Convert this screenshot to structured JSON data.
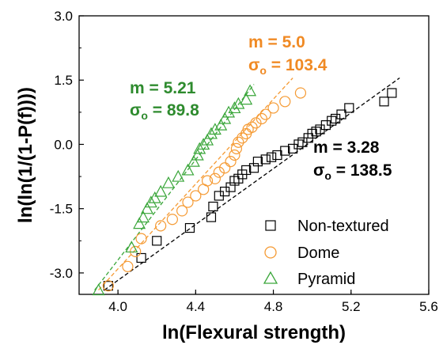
{
  "chart_data": {
    "type": "scatter",
    "xlabel": "ln(Flexural strength)",
    "ylabel": "ln(ln(1/(1-P(f))))",
    "xlim": [
      3.8,
      5.6
    ],
    "ylim": [
      -3.5,
      3.0
    ],
    "xticks": [
      "4.0",
      "4.4",
      "4.8",
      "5.2",
      "5.6"
    ],
    "yticks": [
      "-3.0",
      "-1.5",
      "0.0",
      "1.5",
      "3.0"
    ],
    "xtick_values": [
      4.0,
      4.4,
      4.8,
      5.2,
      5.6
    ],
    "ytick_values": [
      -3.0,
      -1.5,
      0.0,
      1.5,
      3.0
    ],
    "legend_position": "bottom-right",
    "series": [
      {
        "name": "Non-textured",
        "marker": "square",
        "color": "#000000",
        "fit": {
          "x": [
            3.93,
            5.45
          ],
          "y": [
            -3.4,
            1.55
          ]
        },
        "points": [
          [
            3.95,
            -3.3
          ],
          [
            4.12,
            -2.65
          ],
          [
            4.2,
            -2.25
          ],
          [
            4.37,
            -1.95
          ],
          [
            4.48,
            -1.7
          ],
          [
            4.49,
            -1.45
          ],
          [
            4.52,
            -1.2
          ],
          [
            4.55,
            -1.1
          ],
          [
            4.58,
            -1.0
          ],
          [
            4.6,
            -0.85
          ],
          [
            4.62,
            -0.8
          ],
          [
            4.64,
            -0.7
          ],
          [
            4.66,
            -0.6
          ],
          [
            4.7,
            -0.55
          ],
          [
            4.72,
            -0.4
          ],
          [
            4.76,
            -0.35
          ],
          [
            4.79,
            -0.3
          ],
          [
            4.82,
            -0.25
          ],
          [
            4.86,
            -0.15
          ],
          [
            4.9,
            -0.1
          ],
          [
            4.93,
            0.0
          ],
          [
            4.95,
            0.05
          ],
          [
            4.98,
            0.15
          ],
          [
            5.0,
            0.25
          ],
          [
            5.02,
            0.3
          ],
          [
            5.04,
            0.35
          ],
          [
            5.07,
            0.45
          ],
          [
            5.1,
            0.55
          ],
          [
            5.12,
            0.6
          ],
          [
            5.15,
            0.7
          ],
          [
            5.19,
            0.85
          ],
          [
            5.37,
            1.0
          ],
          [
            5.41,
            1.2
          ]
        ]
      },
      {
        "name": "Dome",
        "marker": "circle",
        "color": "#f59a33",
        "fit": {
          "x": [
            3.9,
            4.9
          ],
          "y": [
            -3.4,
            1.55
          ]
        },
        "points": [
          [
            3.95,
            -3.3
          ],
          [
            4.05,
            -2.85
          ],
          [
            4.09,
            -2.5
          ],
          [
            4.12,
            -2.2
          ],
          [
            4.22,
            -1.9
          ],
          [
            4.28,
            -1.75
          ],
          [
            4.33,
            -1.55
          ],
          [
            4.36,
            -1.35
          ],
          [
            4.4,
            -1.2
          ],
          [
            4.44,
            -1.05
          ],
          [
            4.46,
            -0.85
          ],
          [
            4.5,
            -0.8
          ],
          [
            4.52,
            -0.65
          ],
          [
            4.55,
            -0.55
          ],
          [
            4.58,
            -0.4
          ],
          [
            4.6,
            -0.25
          ],
          [
            4.61,
            -0.1
          ],
          [
            4.62,
            0.05
          ],
          [
            4.64,
            0.15
          ],
          [
            4.66,
            0.25
          ],
          [
            4.67,
            0.35
          ],
          [
            4.69,
            0.4
          ],
          [
            4.71,
            0.5
          ],
          [
            4.74,
            0.6
          ],
          [
            4.76,
            0.7
          ],
          [
            4.8,
            0.85
          ],
          [
            4.86,
            1.0
          ],
          [
            4.94,
            1.2
          ]
        ]
      },
      {
        "name": "Pyramid",
        "marker": "triangle",
        "color": "#3aa63a",
        "fit": {
          "x": [
            3.88,
            4.7
          ],
          "y": [
            -3.4,
            1.4
          ]
        },
        "points": [
          [
            3.9,
            -3.4
          ],
          [
            4.07,
            -2.4
          ],
          [
            4.11,
            -1.85
          ],
          [
            4.13,
            -1.7
          ],
          [
            4.15,
            -1.5
          ],
          [
            4.17,
            -1.35
          ],
          [
            4.19,
            -1.25
          ],
          [
            4.22,
            -1.1
          ],
          [
            4.26,
            -0.9
          ],
          [
            4.31,
            -0.75
          ],
          [
            4.36,
            -0.6
          ],
          [
            4.39,
            -0.4
          ],
          [
            4.41,
            -0.25
          ],
          [
            4.42,
            -0.1
          ],
          [
            4.44,
            0.0
          ],
          [
            4.46,
            0.1
          ],
          [
            4.48,
            0.25
          ],
          [
            4.5,
            0.35
          ],
          [
            4.53,
            0.45
          ],
          [
            4.55,
            0.6
          ],
          [
            4.57,
            0.75
          ],
          [
            4.6,
            0.85
          ],
          [
            4.62,
            0.95
          ],
          [
            4.66,
            1.05
          ],
          [
            4.68,
            1.25
          ]
        ]
      }
    ],
    "annotations": {
      "pyramid": {
        "m_line": "m = 5.21",
        "sigma_symbol": "σ",
        "sigma_sub": "o",
        "sigma_value": " = 89.8",
        "color": "#2e8b2e"
      },
      "dome": {
        "m_line": "m = 5.0",
        "sigma_symbol": "σ",
        "sigma_sub": "o",
        "sigma_value": " = 103.4",
        "color": "#f08a24"
      },
      "non_textured": {
        "m_line": "m = 3.28",
        "sigma_symbol": "σ",
        "sigma_sub": "o",
        "sigma_value": " = 138.5",
        "color": "#000000"
      }
    }
  }
}
